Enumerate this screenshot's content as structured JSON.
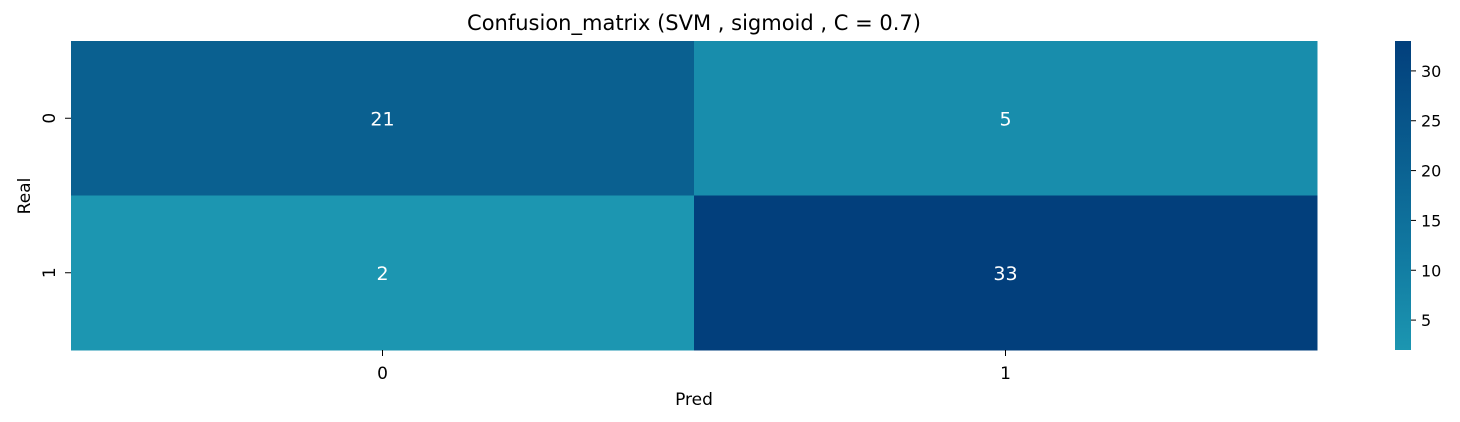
{
  "chart_data": {
    "type": "heatmap",
    "title": "Confusion_matrix (SVM , sigmoid , C = 0.7)",
    "xlabel": "Pred",
    "ylabel": "Real",
    "x_categories": [
      "0",
      "1"
    ],
    "y_categories": [
      "0",
      "1"
    ],
    "values": [
      [
        21,
        5
      ],
      [
        2,
        33
      ]
    ],
    "colorbar": {
      "range": [
        2,
        33
      ],
      "ticks": [
        5,
        10,
        15,
        20,
        25,
        30
      ],
      "colormap_low": "#1c96b1",
      "colormap_mid": "#117aa1",
      "colormap_high": "#023f7c"
    },
    "text_color": "#ffffff"
  }
}
